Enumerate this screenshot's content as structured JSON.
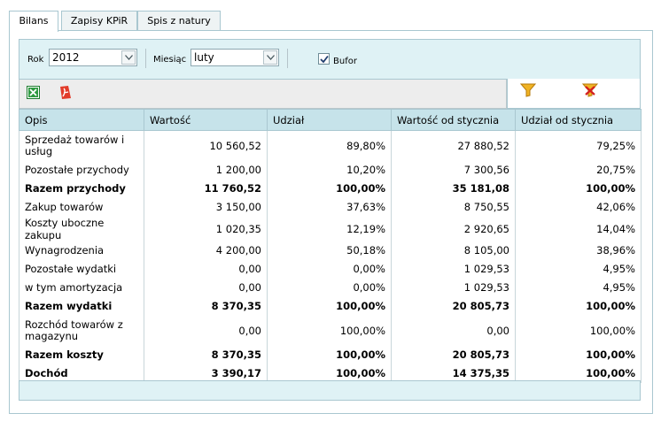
{
  "tabs": [
    {
      "label": "Bilans",
      "active": true
    },
    {
      "label": "Zapisy KPiR",
      "active": false
    },
    {
      "label": "Spis z natury",
      "active": false
    }
  ],
  "filters": {
    "rok_label": "Rok",
    "rok_value": "2012",
    "miesiac_label": "Miesiąc",
    "miesiac_value": "luty",
    "bufor_label": "Bufor",
    "bufor_checked": true
  },
  "icons": {
    "excel": "excel-export-icon",
    "pdf": "pdf-export-icon",
    "filter": "filter-icon",
    "clear_filter": "clear-filter-icon"
  },
  "table": {
    "columns": [
      "Opis",
      "Wartość",
      "Udział",
      "Wartość od stycznia",
      "Udział od stycznia"
    ],
    "rows": [
      {
        "opis": "Sprzedaż towarów i usług",
        "wartosc": "10 560,52",
        "udzial": "89,80%",
        "wartosc_st": "27 880,52",
        "udzial_st": "79,25%",
        "bold": false,
        "tall": true
      },
      {
        "opis": "Pozostałe przychody",
        "wartosc": "1 200,00",
        "udzial": "10,20%",
        "wartosc_st": "7 300,56",
        "udzial_st": "20,75%",
        "bold": false,
        "tall": false
      },
      {
        "opis": "Razem przychody",
        "wartosc": "11 760,52",
        "udzial": "100,00%",
        "wartosc_st": "35 181,08",
        "udzial_st": "100,00%",
        "bold": true,
        "tall": false
      },
      {
        "opis": "Zakup towarów",
        "wartosc": "3 150,00",
        "udzial": "37,63%",
        "wartosc_st": "8 750,55",
        "udzial_st": "42,06%",
        "bold": false,
        "tall": false
      },
      {
        "opis": "Koszty uboczne zakupu",
        "wartosc": "1 020,35",
        "udzial": "12,19%",
        "wartosc_st": "2 920,65",
        "udzial_st": "14,04%",
        "bold": false,
        "tall": false
      },
      {
        "opis": "Wynagrodzenia",
        "wartosc": "4 200,00",
        "udzial": "50,18%",
        "wartosc_st": "8 105,00",
        "udzial_st": "38,96%",
        "bold": false,
        "tall": false
      },
      {
        "opis": "Pozostałe wydatki",
        "wartosc": "0,00",
        "udzial": "0,00%",
        "wartosc_st": "1 029,53",
        "udzial_st": "4,95%",
        "bold": false,
        "tall": false
      },
      {
        "opis": "w tym amortyzacja",
        "wartosc": "0,00",
        "udzial": "0,00%",
        "wartosc_st": "1 029,53",
        "udzial_st": "4,95%",
        "bold": false,
        "tall": false
      },
      {
        "opis": "Razem wydatki",
        "wartosc": "8 370,35",
        "udzial": "100,00%",
        "wartosc_st": "20 805,73",
        "udzial_st": "100,00%",
        "bold": true,
        "tall": false
      },
      {
        "opis": "Rozchód towarów z magazynu",
        "wartosc": "0,00",
        "udzial": "100,00%",
        "wartosc_st": "0,00",
        "udzial_st": "100,00%",
        "bold": false,
        "tall": true
      },
      {
        "opis": "Razem koszty",
        "wartosc": "8 370,35",
        "udzial": "100,00%",
        "wartosc_st": "20 805,73",
        "udzial_st": "100,00%",
        "bold": true,
        "tall": false
      },
      {
        "opis": "Dochód",
        "wartosc": "3 390,17",
        "udzial": "100,00%",
        "wartosc_st": "14 375,35",
        "udzial_st": "100,00%",
        "bold": true,
        "tall": false
      }
    ]
  }
}
